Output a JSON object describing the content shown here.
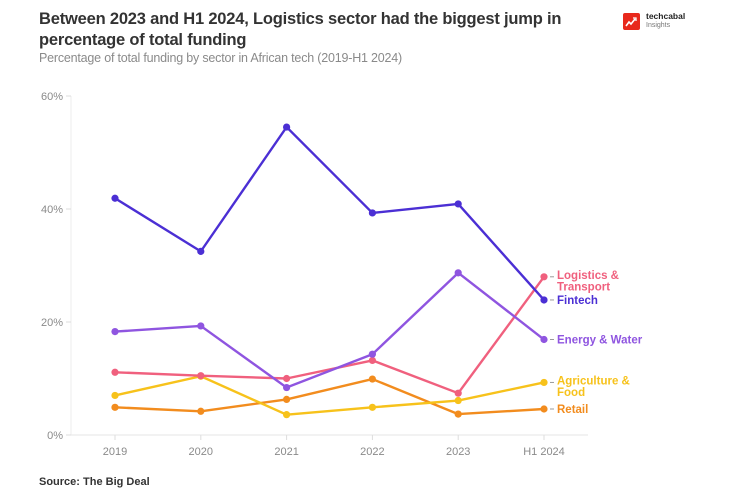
{
  "header": {
    "title": "Between 2023 and H1 2024, Logistics sector had the biggest jump in percentage of total funding",
    "subtitle": "Percentage of total funding by sector in African tech (2019-H1 2024)"
  },
  "logo": {
    "name": "techcabal",
    "sub": "Insights",
    "color": "#e8291c"
  },
  "footer": {
    "source": "Source: The Big Deal"
  },
  "chart_data": {
    "type": "line",
    "title": "Between 2023 and H1 2024, Logistics sector had the biggest jump in percentage of total funding",
    "subtitle": "Percentage of total funding by sector in African tech (2019-H1 2024)",
    "xlabel": "",
    "ylabel": "",
    "categories": [
      "2019",
      "2020",
      "2021",
      "2022",
      "2023",
      "H1 2024"
    ],
    "ylim": [
      0,
      60
    ],
    "yticks": [
      0,
      20,
      40,
      60
    ],
    "ytick_labels": [
      "0%",
      "20%",
      "40%",
      "60%"
    ],
    "grid": false,
    "legend": "direct labels at right end of lines",
    "series": [
      {
        "name": "Fintech",
        "label_lines": [
          "Fintech"
        ],
        "color": "#4b2fd4",
        "values": [
          41.9,
          32.5,
          54.5,
          39.3,
          40.9,
          23.9
        ]
      },
      {
        "name": "Logistics & Transport",
        "label_lines": [
          "Logistics &",
          "Transport"
        ],
        "color": "#f0607e",
        "values": [
          11.1,
          10.5,
          10.0,
          13.2,
          7.4,
          28.0
        ]
      },
      {
        "name": "Energy & Water",
        "label_lines": [
          "Energy & Water"
        ],
        "color": "#8f55e0",
        "values": [
          18.3,
          19.3,
          8.4,
          14.3,
          28.7,
          16.9
        ]
      },
      {
        "name": "Agriculture & Food",
        "label_lines": [
          "Agriculture &",
          "Food"
        ],
        "color": "#f7c21b",
        "values": [
          7.0,
          10.4,
          3.6,
          4.9,
          6.1,
          9.3
        ]
      },
      {
        "name": "Retail",
        "label_lines": [
          "Retail"
        ],
        "color": "#f28c1e",
        "values": [
          4.9,
          4.2,
          6.3,
          9.9,
          3.7,
          4.6
        ]
      }
    ],
    "source": "Source: The Big Deal"
  }
}
